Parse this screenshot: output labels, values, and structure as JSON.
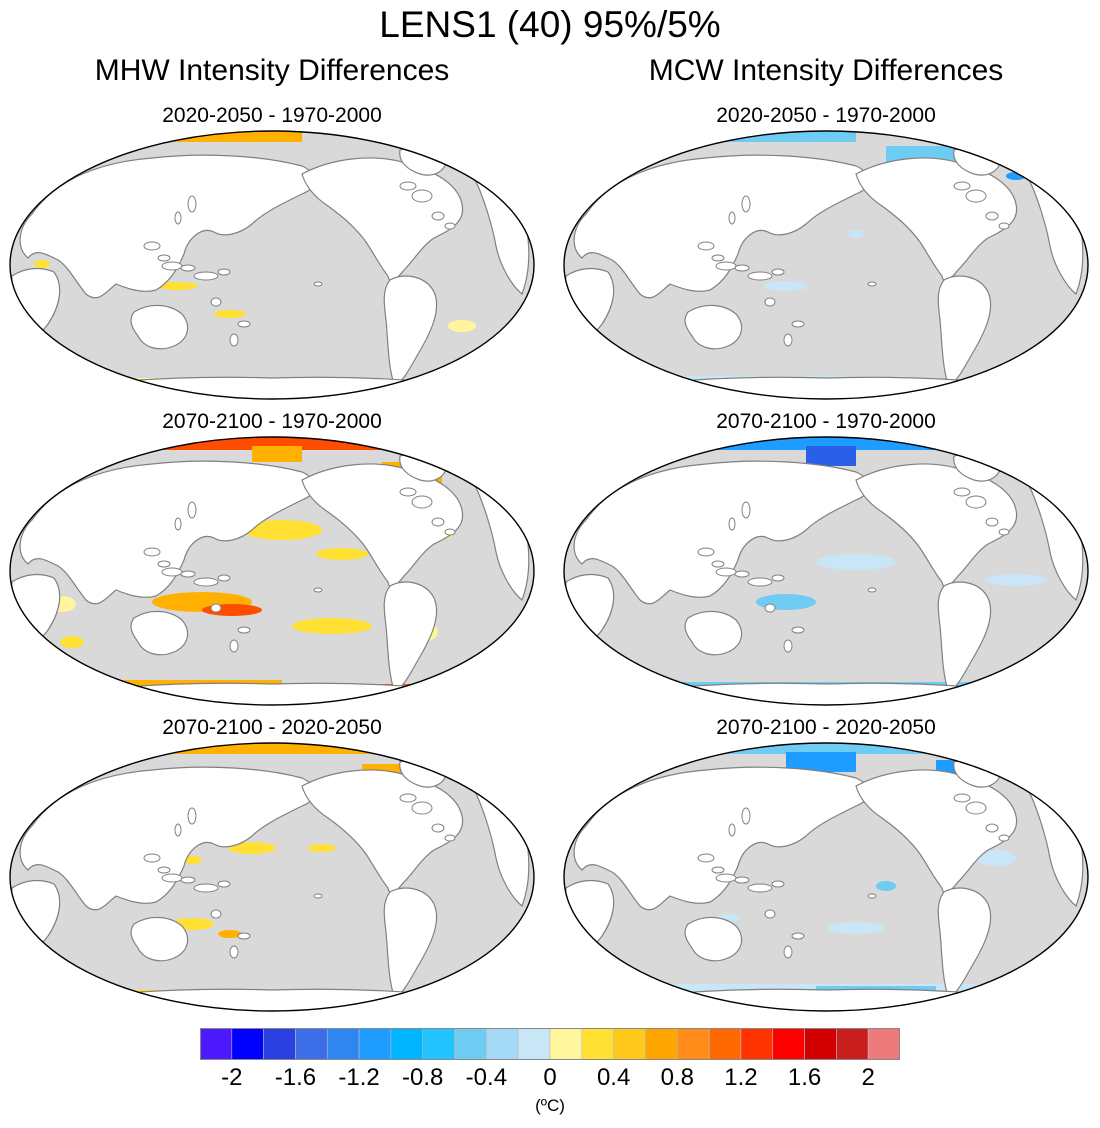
{
  "title": "LENS1 (40) 95%/5%",
  "columns": [
    {
      "title": "MHW Intensity Differences"
    },
    {
      "title": "MCW Intensity Differences"
    }
  ],
  "panels": [
    {
      "title": "2020-2050 - 1970-2000",
      "variable": "MHW",
      "anomaly": "warm-weak"
    },
    {
      "title": "2020-2050 - 1970-2000",
      "variable": "MCW",
      "anomaly": "cool-weak"
    },
    {
      "title": "2070-2100 - 1970-2000",
      "variable": "MHW",
      "anomaly": "warm-strong"
    },
    {
      "title": "2070-2100 - 1970-2000",
      "variable": "MCW",
      "anomaly": "cool-strong"
    },
    {
      "title": "2070-2100 - 2020-2050",
      "variable": "MHW",
      "anomaly": "warm-moderate"
    },
    {
      "title": "2070-2100 - 2020-2050",
      "variable": "MCW",
      "anomaly": "cool-moderate"
    }
  ],
  "colorbar": {
    "colors": [
      "#4d1aff",
      "#0000ff",
      "#2a3fe0",
      "#3c6ee8",
      "#2f86f0",
      "#1e9cff",
      "#00b4ff",
      "#22c3ff",
      "#6ecbf2",
      "#a3d9f5",
      "#c8e6f5",
      "#fff59d",
      "#ffe033",
      "#ffc81a",
      "#ffa500",
      "#ff8c19",
      "#ff6a00",
      "#ff3300",
      "#ff0000",
      "#d20000",
      "#c81e1e",
      "#ee7b7b"
    ],
    "labels": [
      "-2",
      "-1.6",
      "-1.2",
      "-0.8",
      "-0.4",
      "0",
      "0.4",
      "0.8",
      "1.2",
      "1.6",
      "2"
    ],
    "units": "(ºC)"
  },
  "palette": {
    "ocean": "#d9d9d9",
    "land": "#ffffff",
    "coast": "#808080",
    "warm_light": "#fff59d",
    "warm": "#ffe033",
    "warm_strong": "#ffb000",
    "warm_hot": "#ff4d00",
    "cool_light": "#c8e6f5",
    "cool": "#6ecbf2",
    "cool_strong": "#1e9cff",
    "cool_deep": "#2a5fe8"
  }
}
